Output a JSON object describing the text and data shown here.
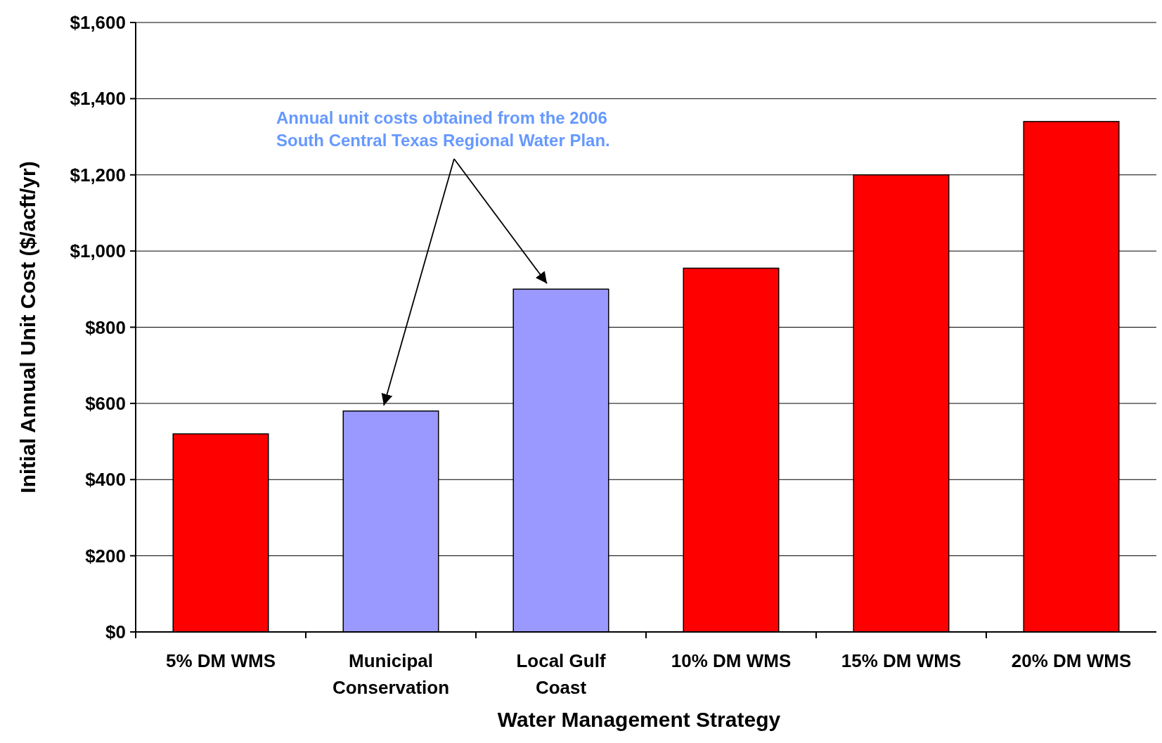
{
  "chart_data": {
    "type": "bar",
    "xlabel": "Water Management Strategy",
    "ylabel": "Initial Annual Unit Cost ($/acft/yr)",
    "categories": [
      "5% DM WMS",
      "Municipal Conservation",
      "Local Gulf Coast",
      "10% DM WMS",
      "15% DM WMS",
      "20% DM WMS"
    ],
    "values": [
      520,
      580,
      900,
      955,
      1200,
      1340
    ],
    "colors": [
      "#ff0000",
      "#9999ff",
      "#9999ff",
      "#ff0000",
      "#ff0000",
      "#ff0000"
    ],
    "ylim": [
      0,
      1600
    ],
    "yticks": [
      {
        "value": 0,
        "label": "$0"
      },
      {
        "value": 200,
        "label": "$200"
      },
      {
        "value": 400,
        "label": "$400"
      },
      {
        "value": 600,
        "label": "$600"
      },
      {
        "value": 800,
        "label": "$800"
      },
      {
        "value": 1000,
        "label": "$1,000"
      },
      {
        "value": 1200,
        "label": "$1,200"
      },
      {
        "value": 1400,
        "label": "$1,400"
      },
      {
        "value": 1600,
        "label": "$1,600"
      }
    ],
    "grid": "y",
    "annotations": [
      "Annual unit costs obtained from the 2006\nSouth Central Texas Regional Water Plan."
    ]
  }
}
